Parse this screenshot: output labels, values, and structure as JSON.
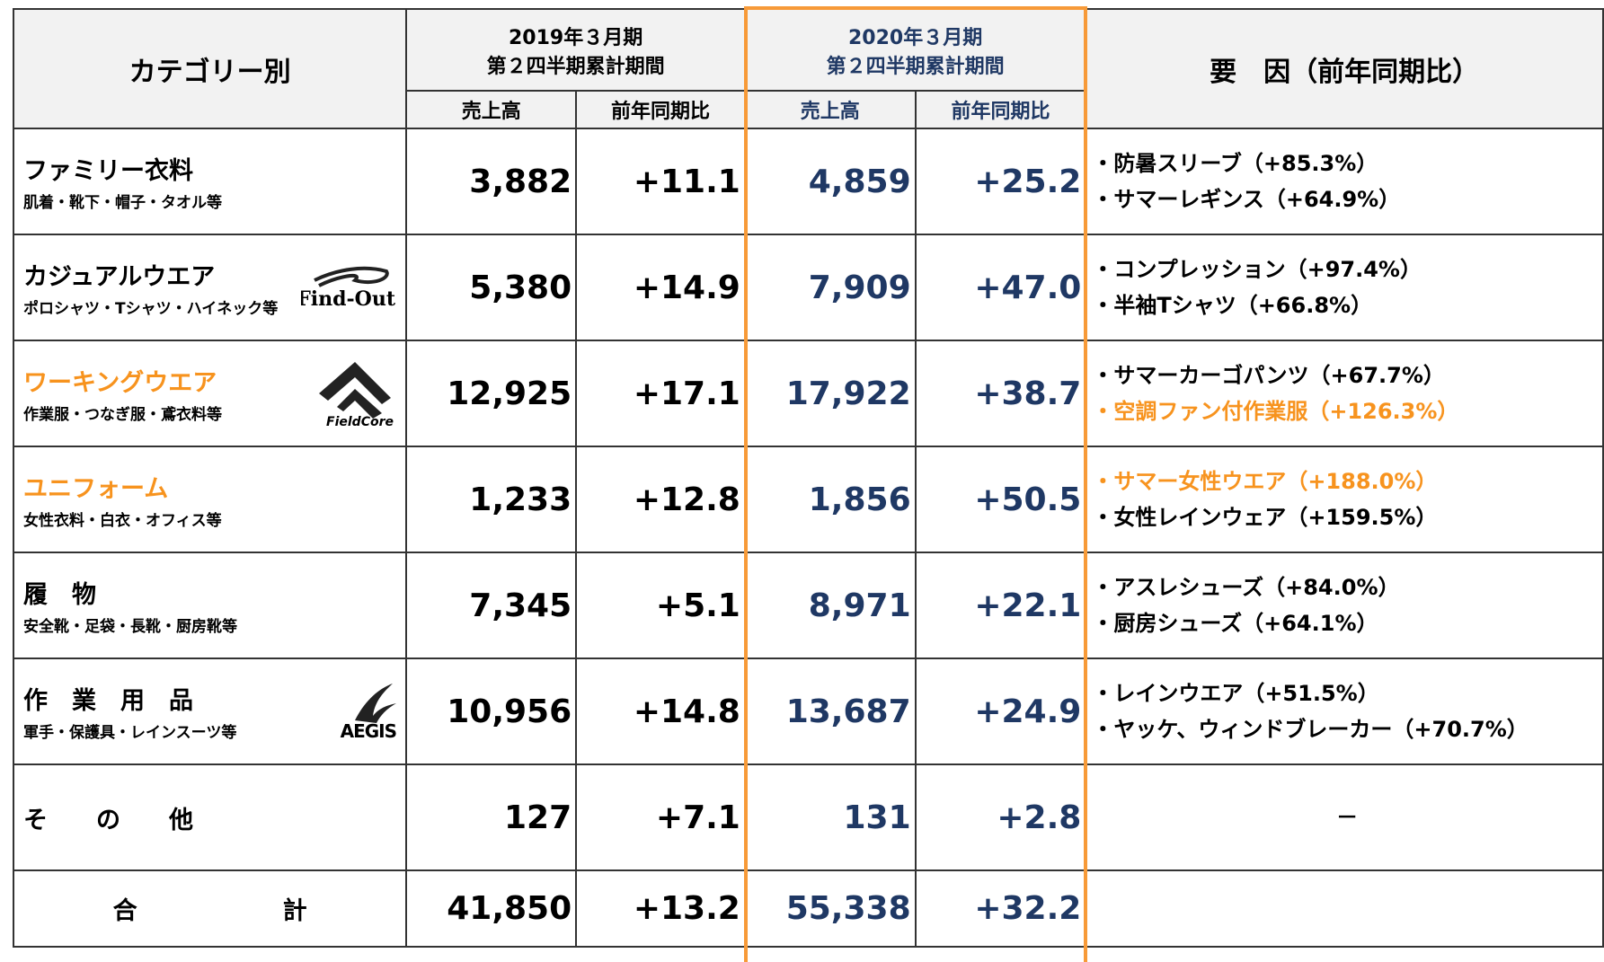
{
  "header": {
    "category": "カテゴリー別",
    "period_2019": [
      "2019年３月期",
      "第２四半期累計期間"
    ],
    "period_2020": [
      "2020年３月期",
      "第２四半期累計期間"
    ],
    "factors": "要　因（前年同期比）",
    "subheaders": [
      "売上高",
      "前年同期比",
      "売上高",
      "前年同期比"
    ]
  },
  "rows": [
    {
      "name": "ファミリー衣料",
      "sub": "肌着・靴下・帽子・タオル等",
      "cells": [
        "3,882",
        "+11.1",
        "4,859",
        "+25.2"
      ],
      "factors": [
        {
          "text": "・防暑スリーブ（+85.3%）"
        },
        {
          "text": "・サマーレギンス（+64.9%）"
        }
      ]
    },
    {
      "name": "カジュアルウエア",
      "sub": "ポロシャツ・Tシャツ・ハイネック等",
      "logo": "Find-Out",
      "cells": [
        "5,380",
        "+14.9",
        "7,909",
        "+47.0"
      ],
      "factors": [
        {
          "text": "・コンプレッション（+97.4%）"
        },
        {
          "text": "・半袖Tシャツ（+66.8%）"
        }
      ]
    },
    {
      "name": "ワーキングウエア",
      "highlight": true,
      "sub": "作業服・つなぎ服・鳶衣料等",
      "logo": "FieldCore",
      "cells": [
        "12,925",
        "+17.1",
        "17,922",
        "+38.7"
      ],
      "factors": [
        {
          "text": "・サマーカーゴパンツ（+67.7%）"
        },
        {
          "text": "・空調ファン付作業服（+126.3%）",
          "highlight": true
        }
      ]
    },
    {
      "name": "ユニフォーム",
      "highlight": true,
      "sub": "女性衣料・白衣・オフィス等",
      "cells": [
        "1,233",
        "+12.8",
        "1,856",
        "+50.5"
      ],
      "factors": [
        {
          "text": "・サマー女性ウエア（+188.0%）",
          "highlight": true
        },
        {
          "text": "・女性レインウェア（+159.5%）"
        }
      ]
    },
    {
      "name": "履　物",
      "sub": "安全靴・足袋・長靴・厨房靴等",
      "cells": [
        "7,345",
        "+5.1",
        "8,971",
        "+22.1"
      ],
      "factors": [
        {
          "text": "・アスレシューズ（+84.0%）"
        },
        {
          "text": "・厨房シューズ（+64.1%）"
        }
      ]
    },
    {
      "name": "作　業　用　品",
      "sub": "軍手・保護具・レインスーツ等",
      "logo": "AEGIS",
      "cells": [
        "10,956",
        "+14.8",
        "13,687",
        "+24.9"
      ],
      "factors": [
        {
          "text": "・レインウエア（+51.5%）"
        },
        {
          "text": "・ヤッケ、ウィンドブレーカー（+70.7%）"
        }
      ]
    },
    {
      "name": "そ　　の　　他",
      "cells": [
        "127",
        "+7.1",
        "131",
        "+2.8"
      ],
      "dash": "－"
    },
    {
      "name": "合　　　　　　計",
      "total": true,
      "cells": [
        "41,850",
        "+13.2",
        "55,338",
        "+32.2"
      ]
    }
  ]
}
